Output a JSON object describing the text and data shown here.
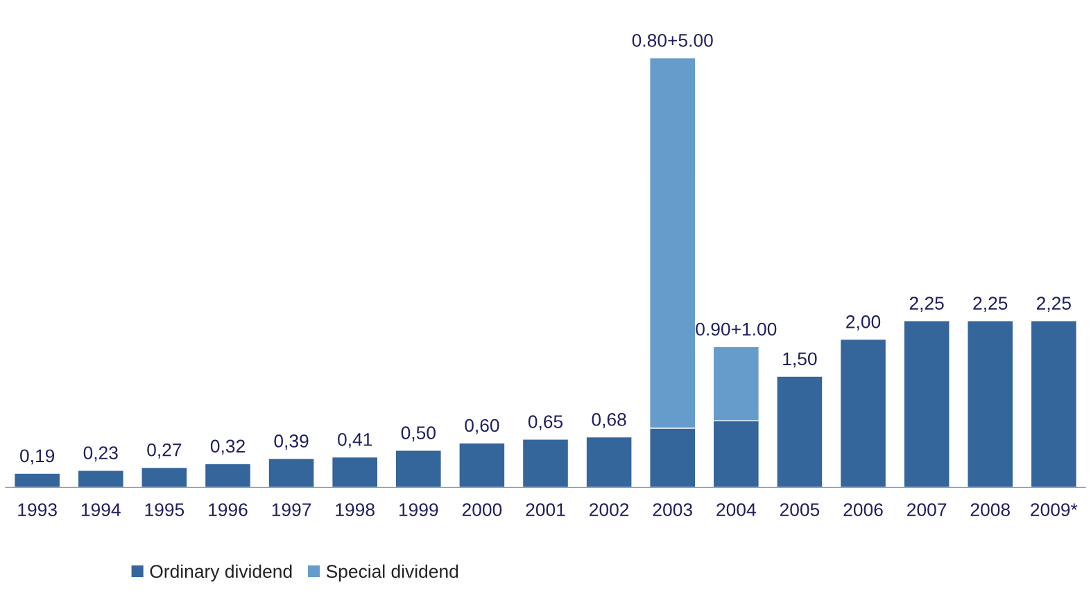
{
  "chart_data": {
    "type": "bar",
    "stacked": true,
    "categories": [
      "1993",
      "1994",
      "1995",
      "1996",
      "1997",
      "1998",
      "1999",
      "2000",
      "2001",
      "2002",
      "2003",
      "2004",
      "2005",
      "2006",
      "2007",
      "2008",
      "2009*"
    ],
    "series": [
      {
        "name": "Ordinary dividend",
        "color": "#34659b",
        "values": [
          0.19,
          0.23,
          0.27,
          0.32,
          0.39,
          0.41,
          0.5,
          0.6,
          0.65,
          0.68,
          0.8,
          0.9,
          1.5,
          2.0,
          2.25,
          2.25,
          2.25
        ],
        "value_labels": [
          "0,19",
          "0,23",
          "0,27",
          "0,32",
          "0,39",
          "0,41",
          "0,50",
          "0,60",
          "0,65",
          "0,68",
          null,
          null,
          "1,50",
          "2,00",
          "2,25",
          "2,25",
          "2,25"
        ]
      },
      {
        "name": "Special dividend",
        "color": "#669ccc",
        "values": [
          null,
          null,
          null,
          null,
          null,
          null,
          null,
          null,
          null,
          null,
          5.0,
          1.0,
          null,
          null,
          null,
          null,
          null
        ]
      }
    ],
    "totals": [
      null,
      null,
      null,
      null,
      null,
      null,
      null,
      null,
      null,
      null,
      "0.80+5.00",
      "0.90+1.00",
      null,
      null,
      null,
      null,
      null
    ],
    "legend": "bottom left",
    "grid": false
  }
}
